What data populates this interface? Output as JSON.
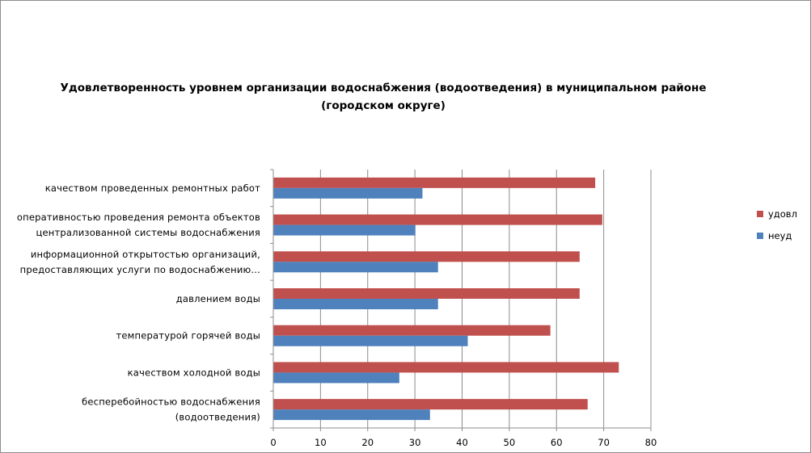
{
  "chart_data": {
    "type": "bar",
    "orientation": "horizontal",
    "title_lines": [
      "Удовлетворенность уровнем организации водоснабжения (водоотведения) в муниципальном районе",
      "(городском округе)"
    ],
    "categories": [
      [
        "качеством  проведенных  ремонтных работ"
      ],
      [
        "оперативностью  проведения  ремонта  объектов",
        "централизованной системы водоснабжения"
      ],
      [
        "информационной  открытостью  организаций,",
        "предоставляющих  услуги по водоснабжению..."
      ],
      [
        "давлением  воды"
      ],
      [
        "температурой  горячей  воды"
      ],
      [
        "качеством  холодной воды"
      ],
      [
        "бесперебойностью  водоснабжения",
        "(водоотведения)"
      ]
    ],
    "series": [
      {
        "name": "удовл",
        "color": "#c0504d",
        "values": [
          68.2,
          69.7,
          64.9,
          64.9,
          58.7,
          73.2,
          66.6
        ]
      },
      {
        "name": "неуд",
        "color": "#4f81bd",
        "values": [
          31.6,
          30.1,
          34.9,
          34.9,
          41.2,
          26.7,
          33.2
        ]
      }
    ],
    "xlim": [
      0,
      80
    ],
    "xticks": [
      "0",
      "10",
      "20",
      "30",
      "40",
      "50",
      "60",
      "70",
      "80"
    ],
    "grid": true,
    "legend": "right"
  }
}
